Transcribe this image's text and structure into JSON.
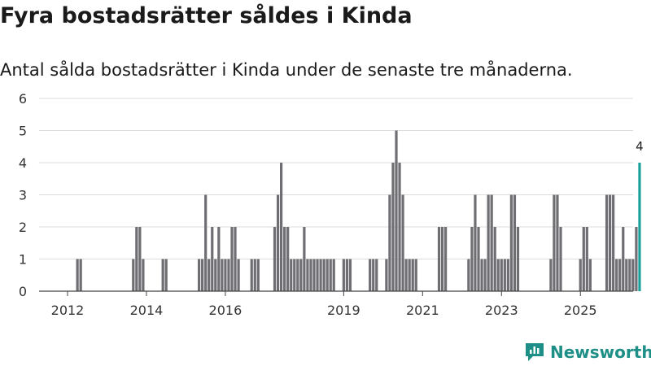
{
  "title": "Fyra bostadsrätter såldes i Kinda",
  "subtitle": "Antal sålda bostadsrätter i Kinda under de senaste tre månaderna.",
  "brand": {
    "name": "Newsworthy"
  },
  "colors": {
    "bar": "#6e6e73",
    "highlight": "#1aa19b",
    "grid": "#dcdcdc",
    "axis": "#444444",
    "brand": "#1e8f86"
  },
  "chart_data": {
    "type": "bar",
    "title": "Fyra bostadsrätter såldes i Kinda",
    "xlabel": "",
    "ylabel": "",
    "ylim": [
      0,
      6
    ],
    "yticks": [
      0,
      1,
      2,
      3,
      4,
      5,
      6
    ],
    "xticks": [
      {
        "label": "2012",
        "month": 0
      },
      {
        "label": "2014",
        "month": 24
      },
      {
        "label": "2016",
        "month": 48
      },
      {
        "label": "2019",
        "month": 84
      },
      {
        "label": "2021",
        "month": 108
      },
      {
        "label": "2023",
        "month": 132
      },
      {
        "label": "2025",
        "month": 156
      }
    ],
    "x_start": "2011-10",
    "unit": "month",
    "values": [
      0,
      0,
      0,
      1,
      1,
      0,
      0,
      0,
      0,
      0,
      0,
      0,
      0,
      0,
      0,
      0,
      0,
      0,
      0,
      0,
      1,
      2,
      2,
      1,
      0,
      0,
      0,
      0,
      0,
      1,
      1,
      0,
      0,
      0,
      0,
      0,
      0,
      0,
      0,
      0,
      1,
      1,
      3,
      1,
      2,
      1,
      2,
      1,
      1,
      1,
      2,
      2,
      1,
      0,
      0,
      0,
      1,
      1,
      1,
      0,
      0,
      0,
      0,
      2,
      3,
      4,
      2,
      2,
      1,
      1,
      1,
      1,
      2,
      1,
      1,
      1,
      1,
      1,
      1,
      1,
      1,
      1,
      0,
      0,
      1,
      1,
      1,
      0,
      0,
      0,
      0,
      0,
      1,
      1,
      1,
      0,
      0,
      1,
      3,
      4,
      5,
      4,
      3,
      1,
      1,
      1,
      1,
      0,
      0,
      0,
      0,
      0,
      0,
      2,
      2,
      2,
      0,
      0,
      0,
      0,
      0,
      0,
      1,
      2,
      3,
      2,
      1,
      1,
      3,
      3,
      2,
      1,
      1,
      1,
      1,
      3,
      3,
      2,
      0,
      0,
      0,
      0,
      0,
      0,
      0,
      0,
      0,
      1,
      3,
      3,
      2,
      0,
      0,
      0,
      0,
      0,
      1,
      2,
      2,
      1,
      0,
      0,
      0,
      0,
      3,
      3,
      3,
      1,
      1,
      2,
      1,
      1,
      1,
      2,
      4
    ],
    "highlight_last": true,
    "annotation": {
      "label": "4"
    }
  }
}
